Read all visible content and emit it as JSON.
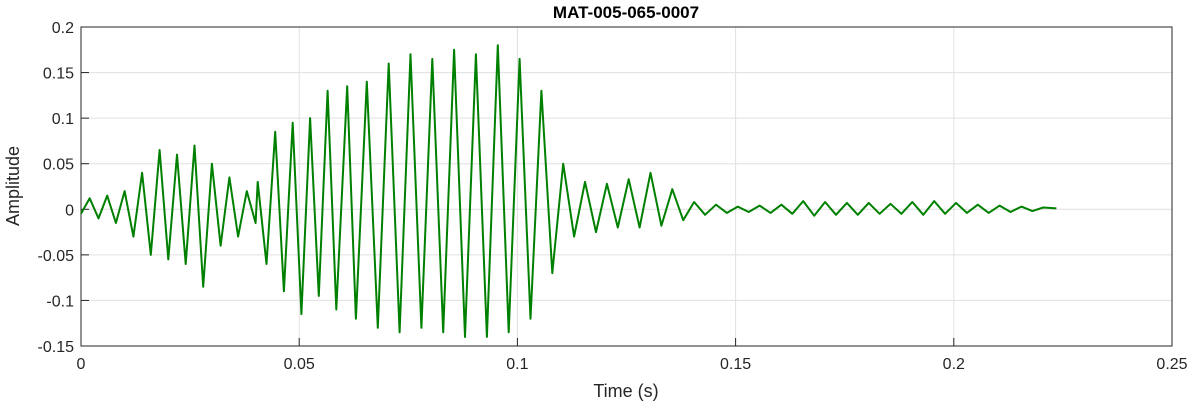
{
  "chart_data": {
    "type": "line",
    "title": "MAT-005-065-0007",
    "xlabel": "Time (s)",
    "ylabel": "Amplitude",
    "xlim": [
      0,
      0.25
    ],
    "ylim": [
      -0.15,
      0.2
    ],
    "grid": true,
    "x_ticks": [
      0,
      0.05,
      0.1,
      0.15,
      0.2,
      0.25
    ],
    "x_tick_labels": [
      "0",
      "0.05",
      "0.1",
      "0.15",
      "0.2",
      "0.25"
    ],
    "y_ticks": [
      -0.15,
      -0.1,
      -0.05,
      0,
      0.05,
      0.1,
      0.15,
      0.2
    ],
    "y_tick_labels": [
      "-0.15",
      "-0.1",
      "-0.05",
      "0",
      "0.05",
      "0.1",
      "0.15",
      "0.2"
    ],
    "series": [
      {
        "color": "#008000",
        "x": [
          0,
          0.002,
          0.004,
          0.006,
          0.008,
          0.01,
          0.012,
          0.014,
          0.016,
          0.018,
          0.02,
          0.022,
          0.024,
          0.026,
          0.028,
          0.03,
          0.032,
          0.034,
          0.036,
          0.038,
          0.04,
          0.0405,
          0.0425,
          0.0445,
          0.0465,
          0.0485,
          0.0505,
          0.0525,
          0.0545,
          0.0565,
          0.0585,
          0.061,
          0.063,
          0.0655,
          0.068,
          0.0705,
          0.073,
          0.0755,
          0.078,
          0.0805,
          0.083,
          0.0855,
          0.088,
          0.0905,
          0.093,
          0.0955,
          0.098,
          0.1005,
          0.103,
          0.1055,
          0.108,
          0.1105,
          0.113,
          0.1155,
          0.118,
          0.1205,
          0.123,
          0.1255,
          0.128,
          0.1305,
          0.133,
          0.1355,
          0.138,
          0.1405,
          0.143,
          0.1455,
          0.148,
          0.1505,
          0.153,
          0.1555,
          0.158,
          0.1605,
          0.163,
          0.1655,
          0.168,
          0.1705,
          0.173,
          0.1755,
          0.178,
          0.1805,
          0.183,
          0.1855,
          0.188,
          0.1905,
          0.193,
          0.1955,
          0.198,
          0.2005,
          0.203,
          0.2055,
          0.208,
          0.2105,
          0.213,
          0.2155,
          0.218,
          0.2205,
          0.2235
        ],
        "y": [
          -0.005,
          0.012,
          -0.01,
          0.015,
          -0.015,
          0.02,
          -0.03,
          0.04,
          -0.05,
          0.065,
          -0.055,
          0.06,
          -0.06,
          0.07,
          -0.085,
          0.05,
          -0.04,
          0.035,
          -0.03,
          0.02,
          -0.015,
          0.03,
          -0.06,
          0.085,
          -0.09,
          0.095,
          -0.115,
          0.1,
          -0.095,
          0.13,
          -0.11,
          0.135,
          -0.12,
          0.14,
          -0.13,
          0.16,
          -0.135,
          0.17,
          -0.13,
          0.165,
          -0.135,
          0.175,
          -0.14,
          0.17,
          -0.14,
          0.18,
          -0.135,
          0.165,
          -0.12,
          0.13,
          -0.07,
          0.05,
          -0.03,
          0.03,
          -0.025,
          0.028,
          -0.02,
          0.033,
          -0.02,
          0.04,
          -0.018,
          0.022,
          -0.012,
          0.008,
          -0.006,
          0.005,
          -0.004,
          0.003,
          -0.003,
          0.004,
          -0.004,
          0.005,
          -0.005,
          0.009,
          -0.007,
          0.008,
          -0.006,
          0.007,
          -0.006,
          0.007,
          -0.005,
          0.006,
          -0.005,
          0.008,
          -0.006,
          0.009,
          -0.005,
          0.007,
          -0.004,
          0.005,
          -0.004,
          0.004,
          -0.003,
          0.003,
          -0.002,
          0.002,
          0.001
        ]
      }
    ]
  }
}
